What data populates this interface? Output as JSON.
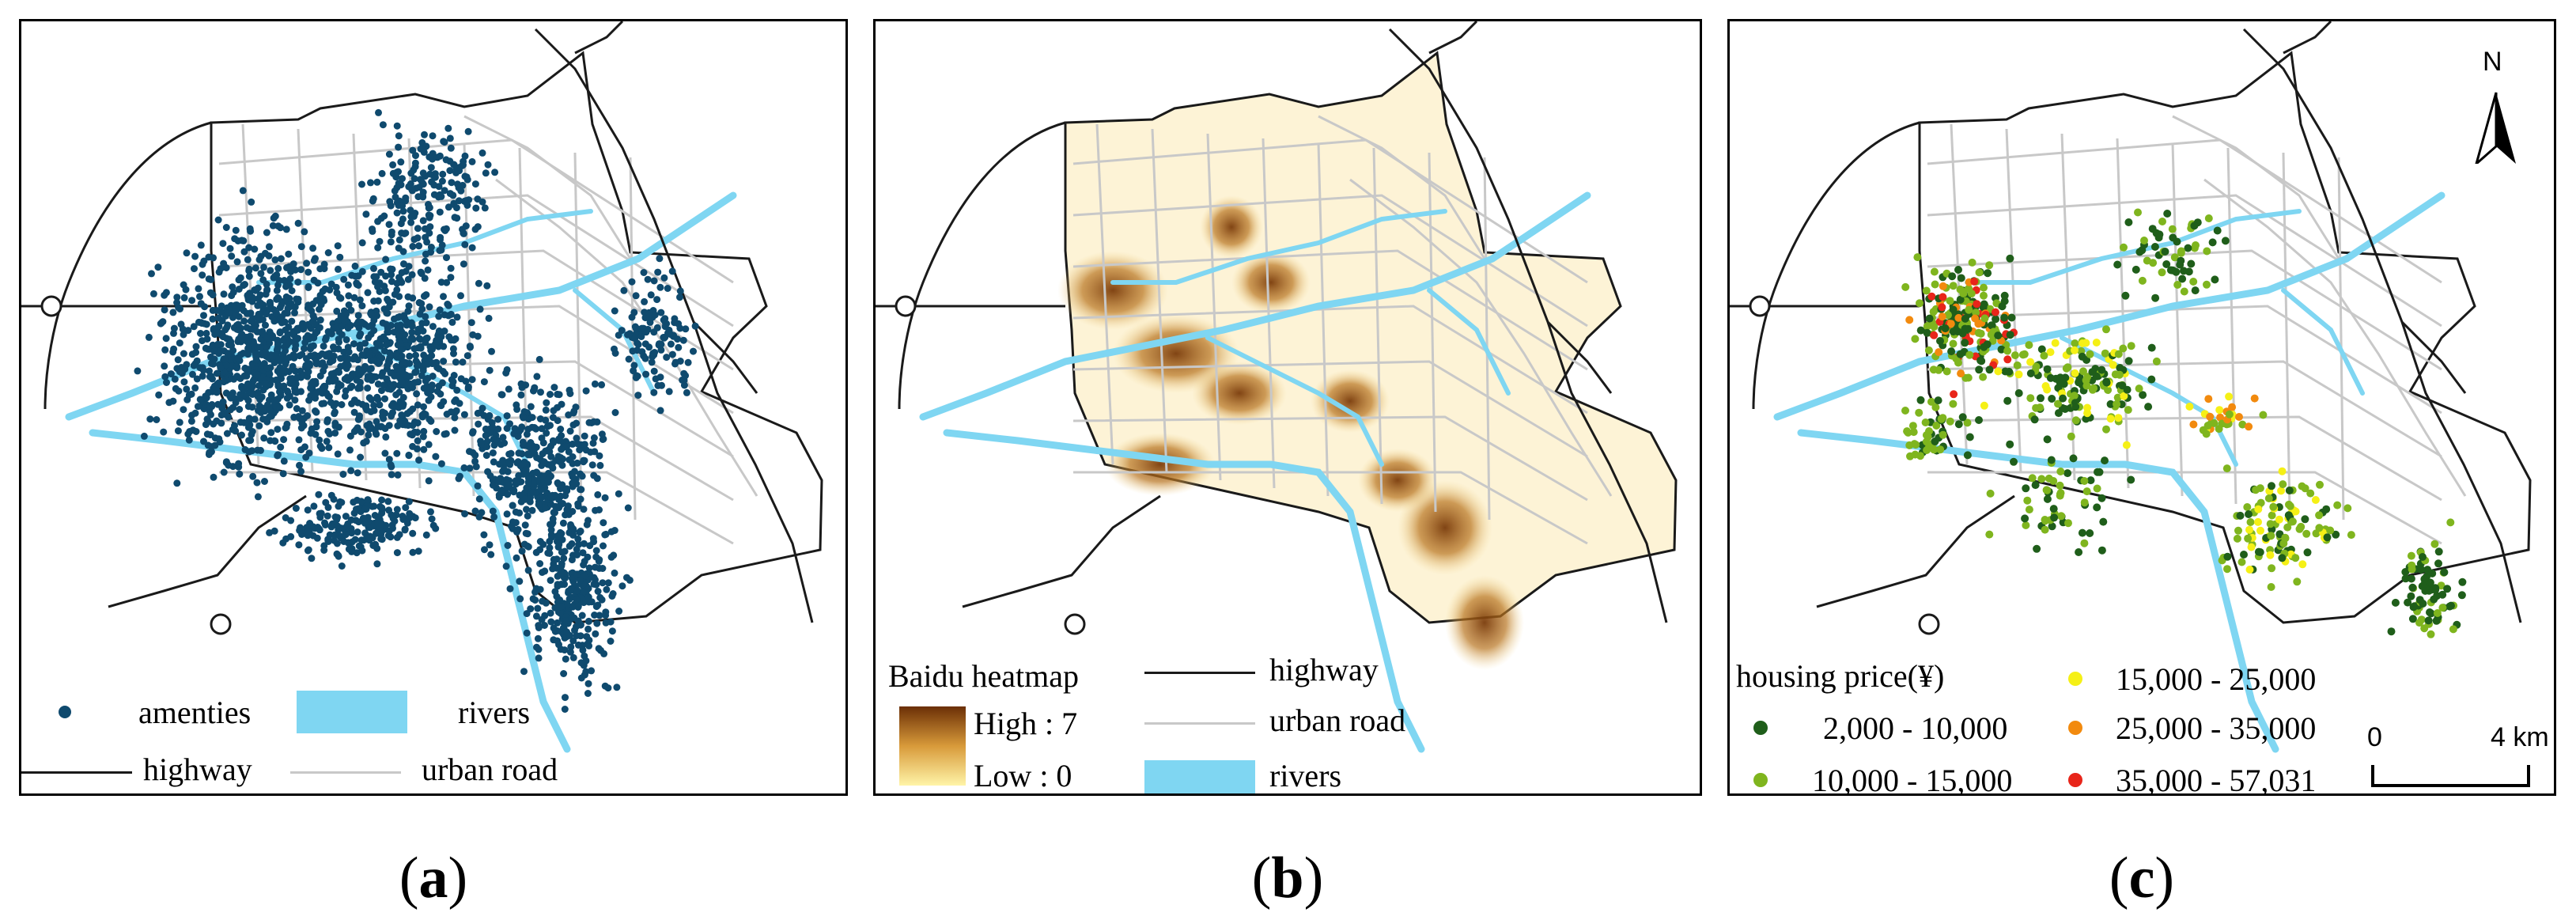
{
  "panels": [
    {
      "id": "a",
      "caption_letter": "a",
      "legend": {
        "amenities": "amenties",
        "rivers": "rivers",
        "highway": "highway",
        "urban_road": "urban road"
      }
    },
    {
      "id": "b",
      "caption_letter": "b",
      "legend": {
        "title": "Baidu heatmap",
        "high": "High : 7",
        "low": "Low : 0",
        "highway": "highway",
        "urban_road": "urban road",
        "rivers": "rivers"
      }
    },
    {
      "id": "c",
      "caption_letter": "c",
      "legend": {
        "title": "housing price(¥)",
        "classes": [
          {
            "label": "2,000 - 10,000",
            "color": "#1f5e1a"
          },
          {
            "label": "10,000 - 15,000",
            "color": "#7fb51e"
          },
          {
            "label": "15,000 - 25,000",
            "color": "#f5f016"
          },
          {
            "label": "25,000 - 35,000",
            "color": "#f28a0e"
          },
          {
            "label": "35,000 - 57,031",
            "color": "#e8251a"
          }
        ]
      },
      "north_label": "N",
      "scale": {
        "start": "0",
        "end": "4 km"
      }
    }
  ],
  "colors": {
    "amenity": "#0f4a6e",
    "river": "#7fd6f2",
    "highway": "#1a1a1a",
    "urban_road": "#c8c8c8",
    "heat_high": "#7a3b0a",
    "heat_low": "#fdf0b0"
  }
}
